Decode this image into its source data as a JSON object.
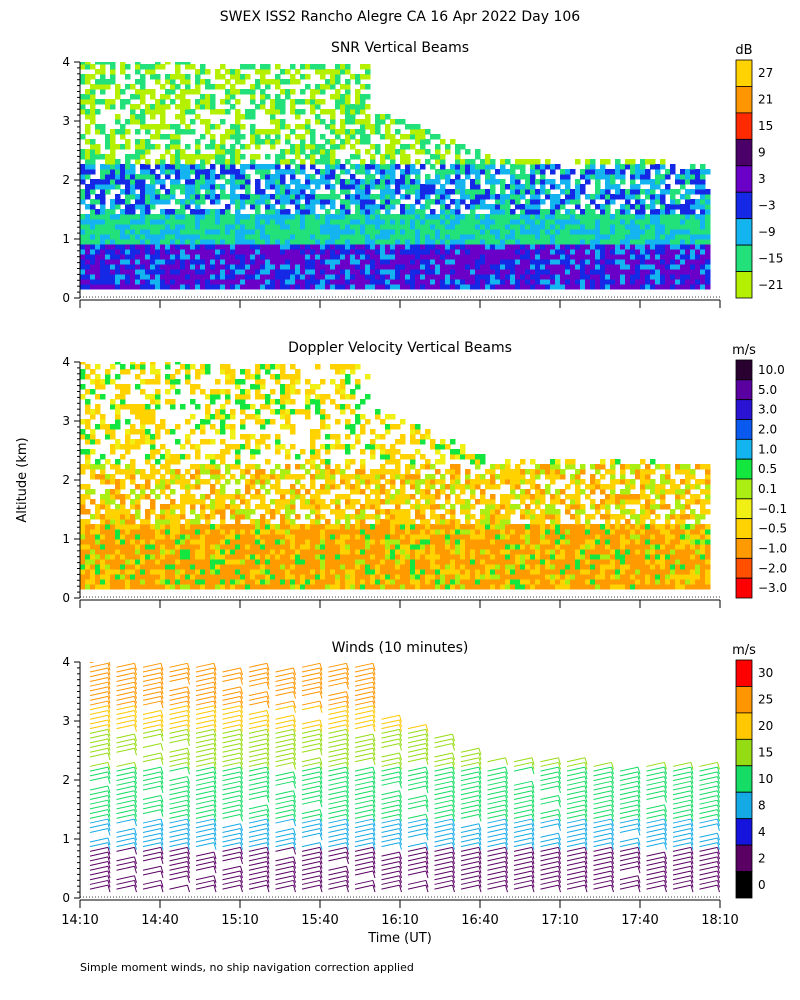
{
  "title": "SWEX ISS2 Rancho Alegre CA  16 Apr 2022 Day 106",
  "ylabel": "Altitude (km)",
  "xlabel": "Time (UT)",
  "footnote": "Simple moment winds, no ship navigation correction applied",
  "chart_data": [
    {
      "type": "heatmap",
      "title": "SNR Vertical Beams",
      "unit": "dB",
      "x_range": [
        "14:10",
        "18:10"
      ],
      "ylim": [
        0,
        4
      ],
      "yticks": [
        "0",
        "1",
        "2",
        "3",
        "4"
      ],
      "colorbar": {
        "levels": [
          "27",
          "21",
          "15",
          "9",
          "3",
          "−3",
          "−9",
          "−15",
          "−21"
        ],
        "colors": [
          "#ffd200",
          "#ff9600",
          "#ff2a00",
          "#4a0068",
          "#6a00c8",
          "#1428e6",
          "#14b4f0",
          "#22e07a",
          "#b4f000"
        ]
      }
    },
    {
      "type": "heatmap",
      "title": "Doppler Velocity Vertical Beams",
      "unit": "m/s",
      "x_range": [
        "14:10",
        "18:10"
      ],
      "ylim": [
        0,
        4
      ],
      "yticks": [
        "0",
        "1",
        "2",
        "3",
        "4"
      ],
      "colorbar": {
        "levels": [
          "10.0",
          "5.0",
          "3.0",
          "2.0",
          "1.0",
          "0.5",
          "0.1",
          "−0.1",
          "−0.5",
          "−1.0",
          "−2.0",
          "−3.0"
        ],
        "colors": [
          "#2a0030",
          "#5a00a0",
          "#2814d2",
          "#0a5af0",
          "#14b4f0",
          "#14e640",
          "#aaee14",
          "#f0f014",
          "#ffd200",
          "#ff9b00",
          "#ff5000",
          "#ff0000"
        ]
      }
    },
    {
      "type": "scatter",
      "title": "Winds (10 minutes)",
      "unit": "m/s",
      "x_range": [
        "14:10",
        "18:10"
      ],
      "ylim": [
        0,
        4
      ],
      "yticks": [
        "0",
        "1",
        "2",
        "3",
        "4"
      ],
      "xticks": [
        "14:10",
        "14:40",
        "15:10",
        "15:40",
        "16:10",
        "16:40",
        "17:10",
        "17:40",
        "18:10"
      ],
      "colorbar": {
        "levels": [
          "30",
          "25",
          "20",
          "15",
          "10",
          "8",
          "4",
          "2",
          "0"
        ],
        "colors": [
          "#ff0000",
          "#ff9600",
          "#ffc800",
          "#96dc14",
          "#14dc64",
          "#14aae6",
          "#1414dc",
          "#5a0064",
          "#000000"
        ]
      }
    }
  ]
}
